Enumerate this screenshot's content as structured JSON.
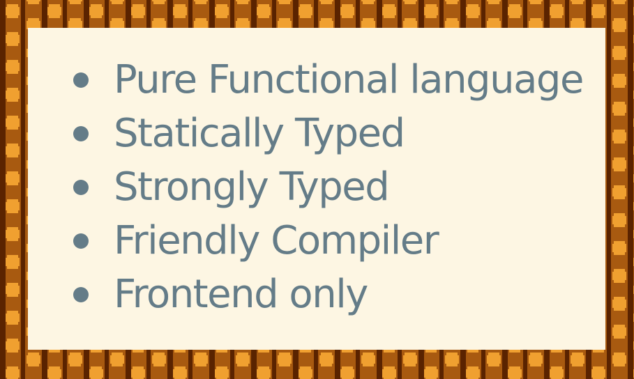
{
  "colors": {
    "frame_dark": "#5a2300",
    "frame_mid": "#a85a10",
    "frame_light": "#f0a030",
    "card_background": "#fdf6e3",
    "text": "#647c88"
  },
  "features": [
    {
      "label": "Pure Functional language"
    },
    {
      "label": "Statically Typed"
    },
    {
      "label": "Strongly Typed"
    },
    {
      "label": "Friendly Compiler"
    },
    {
      "label": "Frontend only"
    }
  ]
}
